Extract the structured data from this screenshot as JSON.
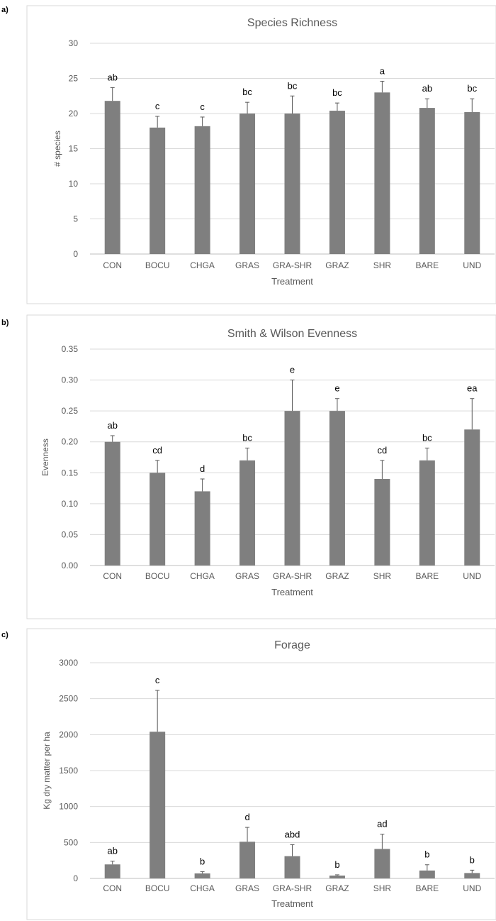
{
  "panels": [
    {
      "label": "a)"
    },
    {
      "label": "b)"
    },
    {
      "label": "c)"
    }
  ],
  "chart_data": [
    {
      "type": "bar",
      "title": "Species Richness",
      "xlabel": "Treatment",
      "ylabel": "# species",
      "categories": [
        "CON",
        "BOCU",
        "CHGA",
        "GRAS",
        "GRA-SHR",
        "GRAZ",
        "SHR",
        "BARE",
        "UND"
      ],
      "values": [
        21.8,
        18.0,
        18.2,
        20.0,
        20.0,
        20.4,
        23.0,
        20.8,
        20.2
      ],
      "errors": [
        1.9,
        1.6,
        1.3,
        1.6,
        2.5,
        1.1,
        1.6,
        1.3,
        1.9
      ],
      "letters": [
        "ab",
        "c",
        "c",
        "bc",
        "bc",
        "bc",
        "a",
        "ab",
        "bc"
      ],
      "ylim": [
        0,
        30
      ],
      "yticks": [
        "0",
        "5",
        "10",
        "15",
        "20",
        "25",
        "30"
      ],
      "grid": true,
      "bar_color": "#7f7f7f"
    },
    {
      "type": "bar",
      "title": "Smith & Wilson Evenness",
      "xlabel": "Treatment",
      "ylabel": "Evenness",
      "categories": [
        "CON",
        "BOCU",
        "CHGA",
        "GRAS",
        "GRA-SHR",
        "GRAZ",
        "SHR",
        "BARE",
        "UND"
      ],
      "values": [
        0.2,
        0.15,
        0.12,
        0.17,
        0.25,
        0.25,
        0.14,
        0.17,
        0.22
      ],
      "errors": [
        0.01,
        0.02,
        0.02,
        0.02,
        0.05,
        0.02,
        0.03,
        0.02,
        0.05
      ],
      "letters": [
        "ab",
        "cd",
        "d",
        "bc",
        "e",
        "e",
        "cd",
        "bc",
        "ea"
      ],
      "ylim": [
        0,
        0.35
      ],
      "yticks": [
        "0.00",
        "0.05",
        "0.10",
        "0.15",
        "0.20",
        "0.25",
        "0.30",
        "0.35"
      ],
      "grid": true,
      "bar_color": "#7f7f7f"
    },
    {
      "type": "bar",
      "title": "Forage",
      "xlabel": "Treatment",
      "ylabel": "Kg dry matter per ha",
      "categories": [
        "CON",
        "BOCU",
        "CHGA",
        "GRAS",
        "GRA-SHR",
        "GRAZ",
        "SHR",
        "BARE",
        "UND"
      ],
      "values": [
        195,
        2040,
        70,
        510,
        310,
        40,
        410,
        110,
        75
      ],
      "errors": [
        45,
        575,
        25,
        200,
        160,
        10,
        205,
        80,
        40
      ],
      "letters": [
        "ab",
        "c",
        "b",
        "d",
        "abd",
        "b",
        "ad",
        "b",
        "b"
      ],
      "ylim": [
        0,
        3000
      ],
      "yticks": [
        "0",
        "500",
        "1000",
        "1500",
        "2000",
        "2500",
        "3000"
      ],
      "grid": true,
      "bar_color": "#7f7f7f"
    }
  ]
}
